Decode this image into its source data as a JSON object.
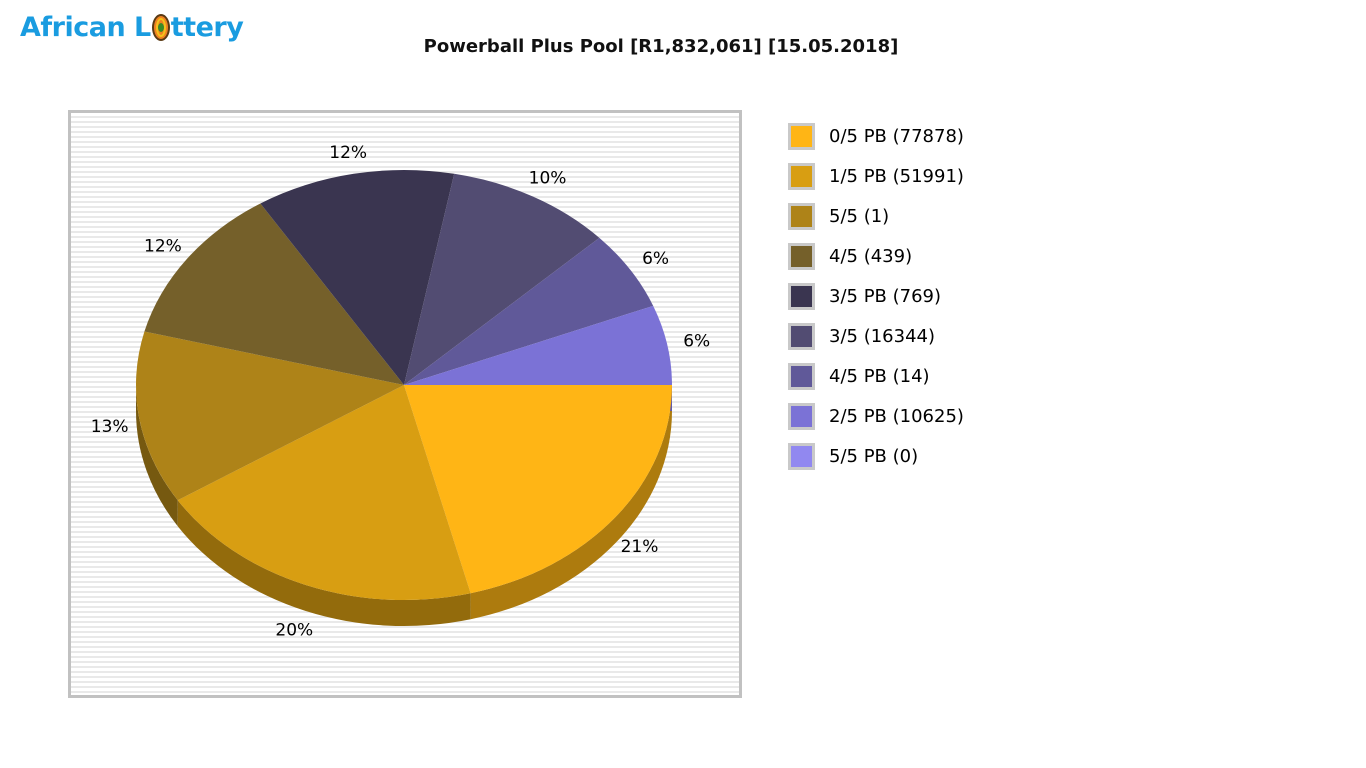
{
  "logo": {
    "full_text": "African Lottery",
    "prefix": "African L",
    "suffix": "ttery",
    "color": "#1a9ce0",
    "ball_colors": {
      "outer": "#ef8222",
      "ring": "#f4c31c",
      "center": "#3a8a28"
    }
  },
  "header": {
    "title": "Powerball Plus Pool [R1,832,061] [15.05.2018]"
  },
  "chart_data": {
    "type": "pie",
    "style": "3d",
    "title": "Powerball Plus Pool [R1,832,061] [15.05.2018]",
    "legend_position": "right",
    "start_angle_deg": 0,
    "direction": "clockwise",
    "slices": [
      {
        "label": "0/5 PB",
        "count": 77878,
        "percent": 21,
        "color": "#FFB515"
      },
      {
        "label": "1/5 PB",
        "count": 51991,
        "percent": 20,
        "color": "#D89E12"
      },
      {
        "label": "5/5",
        "count": 1,
        "percent": 13,
        "color": "#AE8318"
      },
      {
        "label": "4/5",
        "count": 439,
        "percent": 12,
        "color": "#75602A"
      },
      {
        "label": "3/5 PB",
        "count": 769,
        "percent": 12,
        "color": "#3A3550"
      },
      {
        "label": "3/5",
        "count": 16344,
        "percent": 10,
        "color": "#524C72"
      },
      {
        "label": "4/5 PB",
        "count": 14,
        "percent": 6,
        "color": "#605999"
      },
      {
        "label": "2/5 PB",
        "count": 10625,
        "percent": 6,
        "color": "#7B72D6"
      },
      {
        "label": "5/5 PB",
        "count": 0,
        "percent": 0,
        "color": "#9188F0"
      }
    ]
  }
}
